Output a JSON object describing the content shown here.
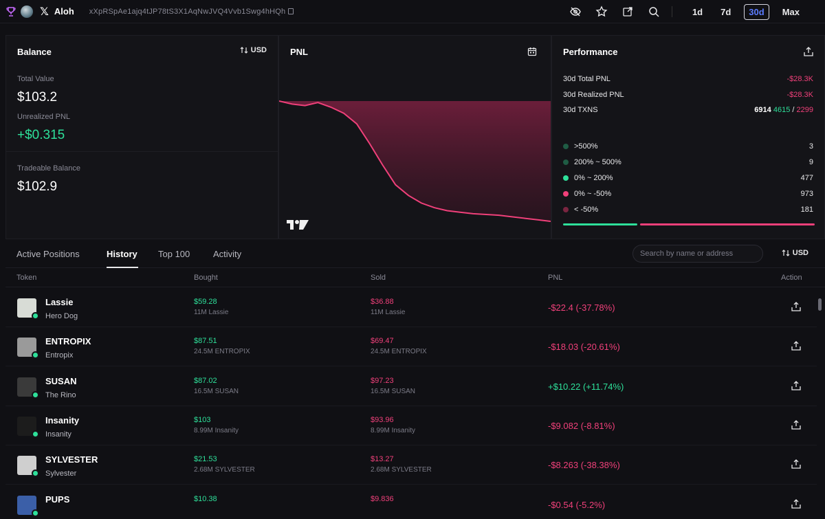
{
  "topbar": {
    "name": "Aloh",
    "address": "xXpRSpAe1ajq4tJP78tS3X1AqNwJVQ4Vvb1Swg4hHQh",
    "periods": [
      "1d",
      "7d",
      "30d",
      "Max"
    ],
    "active_period": "30d"
  },
  "balance": {
    "title": "Balance",
    "currency": "USD",
    "total_value_label": "Total Value",
    "total_value": "$103.2",
    "unrealized_label": "Unrealized PNL",
    "unrealized_value": "+$0.315",
    "tradeable_label": "Tradeable Balance",
    "tradeable_value": "$102.9"
  },
  "pnl": {
    "title": "PNL",
    "chart_trend": [
      100,
      98,
      97,
      99,
      96,
      92,
      85,
      72,
      58,
      45,
      38,
      33,
      30,
      28,
      27,
      26,
      25.5,
      25,
      24,
      23,
      22,
      21
    ]
  },
  "performance": {
    "title": "Performance",
    "total_pnl_label": "30d Total PNL",
    "total_pnl": "-$28.3K",
    "realized_pnl_label": "30d Realized PNL",
    "realized_pnl": "-$28.3K",
    "txns_label": "30d TXNS",
    "txns_total": "6914",
    "txns_buy": "4615",
    "txns_sep": "/",
    "txns_sell": "2299",
    "buckets": [
      {
        "label": ">500%",
        "count": "3",
        "color": "#1f5c44"
      },
      {
        "label": "200% ~ 500%",
        "count": "9",
        "color": "#1f5c44"
      },
      {
        "label": "0% ~ 200%",
        "count": "477",
        "color": "#2ee09a"
      },
      {
        "label": "0% ~ -50%",
        "count": "973",
        "color": "#f0407a"
      },
      {
        "label": "< -50%",
        "count": "181",
        "color": "#7a2540"
      }
    ],
    "win_color": "#2ee09a",
    "loss_color": "#f0407a"
  },
  "tabs": {
    "items": [
      "Active Positions",
      "History",
      "Top 100",
      "Activity"
    ],
    "active": "History",
    "search_placeholder": "Search by name or address",
    "currency": "USD"
  },
  "table": {
    "headers": {
      "token": "Token",
      "bought": "Bought",
      "sold": "Sold",
      "pnl": "PNL",
      "action": "Action"
    },
    "rows": [
      {
        "name": "Lassie",
        "sub": "Hero Dog",
        "bought": "$59.28",
        "bought_qty": "11M Lassie",
        "sold": "$36.88",
        "sold_qty": "11M Lassie",
        "pnl": "-$22.4 (-37.78%)",
        "positive": false,
        "img": "#d8dcd6"
      },
      {
        "name": "ENTROPIX",
        "sub": "Entropix",
        "bought": "$87.51",
        "bought_qty": "24.5M ENTROPIX",
        "sold": "$69.47",
        "sold_qty": "24.5M ENTROPIX",
        "pnl": "-$18.03 (-20.61%)",
        "positive": false,
        "img": "#9a9a9a"
      },
      {
        "name": "SUSAN",
        "sub": "The Rino",
        "bought": "$87.02",
        "bought_qty": "16.5M SUSAN",
        "sold": "$97.23",
        "sold_qty": "16.5M SUSAN",
        "pnl": "+$10.22 (+11.74%)",
        "positive": true,
        "img": "#3a3a3a"
      },
      {
        "name": "Insanity",
        "sub": "Insanity",
        "bought": "$103",
        "bought_qty": "8.99M Insanity",
        "sold": "$93.96",
        "sold_qty": "8.99M Insanity",
        "pnl": "-$9.082 (-8.81%)",
        "positive": false,
        "img": "#1c1c1c"
      },
      {
        "name": "SYLVESTER",
        "sub": "Sylvester",
        "bought": "$21.53",
        "bought_qty": "2.68M SYLVESTER",
        "sold": "$13.27",
        "sold_qty": "2.68M SYLVESTER",
        "pnl": "-$8.263 (-38.38%)",
        "positive": false,
        "img": "#cfcfcf"
      },
      {
        "name": "PUPS",
        "sub": "",
        "bought": "$10.38",
        "bought_qty": "",
        "sold": "$9.836",
        "sold_qty": "",
        "pnl": "-$0.54 (-5.2%)",
        "positive": false,
        "img": "#3b5fa8"
      }
    ]
  }
}
